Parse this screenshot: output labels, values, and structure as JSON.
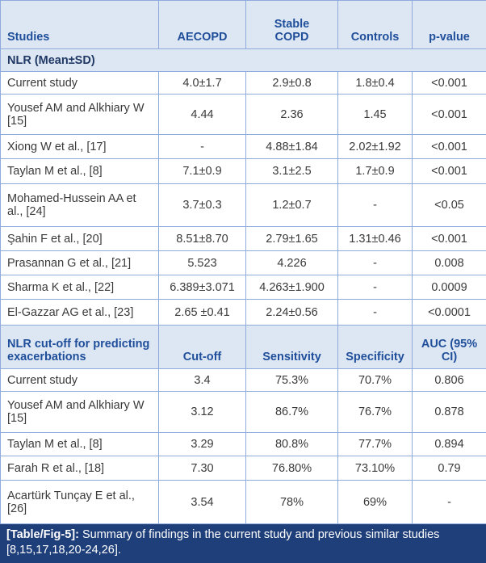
{
  "table": {
    "header": [
      "Studies",
      "AECOPD",
      "Stable COPD",
      "Controls",
      "p-value"
    ],
    "sections": [
      {
        "title": "NLR (Mean±SD)",
        "rows": [
          [
            "Current study",
            "4.0±1.7",
            "2.9±0.8",
            "1.8±0.4",
            "<0.001"
          ],
          [
            "Yousef AM and Alkhiary W [15]",
            "4.44",
            "2.36",
            "1.45",
            "<0.001"
          ],
          [
            "Xiong W et al., [17]",
            "-",
            "4.88±1.84",
            "2.02±1.92",
            "<0.001"
          ],
          [
            "Taylan M et al., [8]",
            "7.1±0.9",
            "3.1±2.5",
            "1.7±0.9",
            "<0.001"
          ],
          [
            "Mohamed-Hussein AA et al., [24]",
            "3.7±0.3",
            "1.2±0.7",
            "-",
            "<0.05"
          ],
          [
            "Şahin F et al., [20]",
            "8.51±8.70",
            "2.79±1.65",
            "1.31±0.46",
            "<0.001"
          ],
          [
            "Prasannan G et al., [21]",
            "5.523",
            "4.226",
            "-",
            "0.008"
          ],
          [
            "Sharma K et al., [22]",
            "6.389±3.071",
            "4.263±1.900",
            "-",
            "0.0009"
          ],
          [
            "El-Gazzar AG et al., [23]",
            "2.65 ±0.41",
            "2.24±0.56",
            "-",
            "<0.0001"
          ]
        ]
      },
      {
        "header": [
          "NLR cut-off for predicting exacerbations",
          "Cut-off",
          "Sensitivity",
          "Specificity",
          "AUC (95% CI)"
        ],
        "rows": [
          [
            "Current study",
            "3.4",
            "75.3%",
            "70.7%",
            "0.806"
          ],
          [
            "Yousef AM and Alkhiary W [15]",
            "3.12",
            "86.7%",
            "76.7%",
            "0.878"
          ],
          [
            "Taylan M et al., [8]",
            "3.29",
            "80.8%",
            "77.7%",
            "0.894"
          ],
          [
            "Farah R et al., [18]",
            "7.30",
            "76.80%",
            "73.10%",
            "0.79"
          ],
          [
            "Acartürk Tunçay E et al., [26]",
            "3.54",
            "78%",
            "69%",
            "-"
          ]
        ]
      }
    ]
  },
  "caption": {
    "label": "[Table/Fig-5]:",
    "text": "Summary of findings in the current study and previous similar studies [8,15,17,18,20-24,26]."
  }
}
